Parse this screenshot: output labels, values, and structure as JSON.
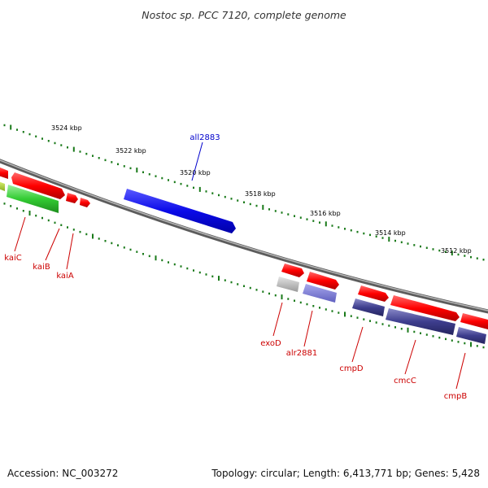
{
  "title": "Nostoc sp. PCC 7120, complete genome",
  "accession": "Accession: NC_003272",
  "summary": "Topology: circular; Length: 6,413,771 bp; Genes: 5,428",
  "colors": {
    "forward_gene": "#ff0000",
    "reverse_gene": "#3a3a8c",
    "highlight_gene": "#1010ee",
    "green_gene": "#33cc33",
    "grey_gene": "#a8a8a8",
    "backbone": "#808080",
    "ticks": "#1a7a1a",
    "label_red": "#cc0000",
    "label_blue": "#0000cc"
  },
  "ruler": [
    {
      "label": "3524 kbp"
    },
    {
      "label": "3522 kbp"
    },
    {
      "label": "3520 kbp"
    },
    {
      "label": "3518 kbp"
    },
    {
      "label": "3516 kbp"
    },
    {
      "label": "3514 kbp"
    },
    {
      "label": "3512 kbp"
    }
  ],
  "gene_labels": [
    {
      "name": "all2883",
      "color": "blue"
    },
    {
      "name": "kaiC",
      "color": "red"
    },
    {
      "name": "kaiB",
      "color": "red"
    },
    {
      "name": "kaiA",
      "color": "red"
    },
    {
      "name": "exoD",
      "color": "red"
    },
    {
      "name": "alr2881",
      "color": "red"
    },
    {
      "name": "cmpD",
      "color": "red"
    },
    {
      "name": "cmcC",
      "color": "red"
    },
    {
      "name": "cmpB",
      "color": "red"
    }
  ]
}
